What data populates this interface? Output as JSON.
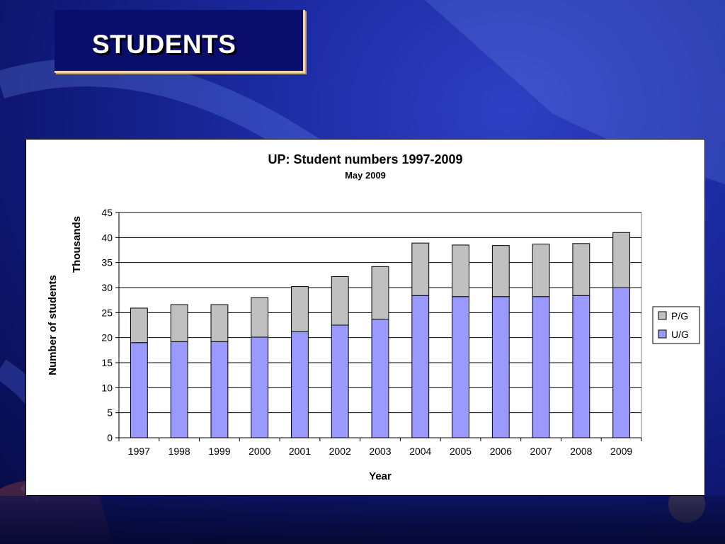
{
  "slide": {
    "title": "STUDENTS"
  },
  "colors": {
    "ug": "#9999ff",
    "pg": "#c0c0c0",
    "background": "#1b2aa0",
    "title_box": "#0a0d6b"
  },
  "chart_data": {
    "type": "bar",
    "stacked": true,
    "title": "UP: Student numbers 1997-2009",
    "subtitle": "May 2009",
    "xlabel": "Year",
    "ylabel": "Number of students",
    "yunit_label": "Thousands",
    "ylim": [
      0,
      45
    ],
    "yticks": [
      0,
      5,
      10,
      15,
      20,
      25,
      30,
      35,
      40,
      45
    ],
    "grid": true,
    "legend_position": "right",
    "categories": [
      "1997",
      "1998",
      "1999",
      "2000",
      "2001",
      "2002",
      "2003",
      "2004",
      "2005",
      "2006",
      "2007",
      "2008",
      "2009"
    ],
    "series": [
      {
        "name": "U/G",
        "color": "#9999ff",
        "values": [
          19.0,
          19.2,
          19.2,
          20.1,
          21.2,
          22.5,
          23.7,
          28.4,
          28.2,
          28.2,
          28.2,
          28.4,
          30.0
        ]
      },
      {
        "name": "P/G",
        "color": "#c0c0c0",
        "values": [
          6.9,
          7.4,
          7.4,
          7.9,
          9.0,
          9.7,
          10.5,
          10.5,
          10.3,
          10.2,
          10.5,
          10.4,
          11.0
        ]
      }
    ],
    "legend_order": [
      "P/G",
      "U/G"
    ]
  }
}
